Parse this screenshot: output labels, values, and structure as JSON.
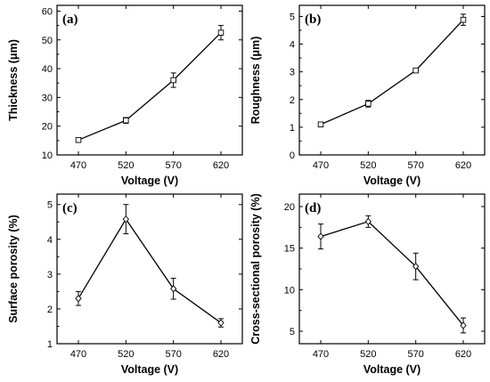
{
  "chart_data": [
    {
      "type": "line",
      "panel_label": "(a)",
      "xlabel": "Voltage (V)",
      "ylabel": "Thickness (μm)",
      "categories": [
        "470",
        "520",
        "570",
        "620"
      ],
      "x": [
        470,
        520,
        570,
        620
      ],
      "values": [
        15.2,
        22.0,
        36.0,
        52.5
      ],
      "errors": [
        0.8,
        1.0,
        2.5,
        2.5
      ],
      "ylim": [
        10,
        62
      ],
      "yticks": [
        10,
        20,
        30,
        40,
        50,
        60
      ],
      "grid": false,
      "marker": "open-square"
    },
    {
      "type": "line",
      "panel_label": "(b)",
      "xlabel": "Voltage (V)",
      "ylabel": "Roughness (μm)",
      "categories": [
        "470",
        "520",
        "570",
        "620"
      ],
      "x": [
        470,
        520,
        570,
        620
      ],
      "values": [
        1.1,
        1.85,
        3.05,
        4.88
      ],
      "errors": [
        0.07,
        0.12,
        0.07,
        0.2
      ],
      "ylim": [
        0,
        5.4
      ],
      "yticks": [
        0,
        1,
        2,
        3,
        4,
        5
      ],
      "grid": false,
      "marker": "open-square"
    },
    {
      "type": "line",
      "panel_label": "(c)",
      "xlabel": "Voltage (V)",
      "ylabel": "Surface porosity (%)",
      "categories": [
        "470",
        "520",
        "570",
        "620"
      ],
      "x": [
        470,
        520,
        570,
        620
      ],
      "values": [
        2.3,
        4.58,
        2.58,
        1.6
      ],
      "errors": [
        0.2,
        0.42,
        0.3,
        0.12
      ],
      "ylim": [
        1,
        5.3
      ],
      "yticks": [
        1,
        2,
        3,
        4,
        5
      ],
      "grid": false,
      "marker": "open-diamond"
    },
    {
      "type": "line",
      "panel_label": "(d)",
      "xlabel": "Voltage (V)",
      "ylabel": "Cross-sectional porosity (%)",
      "categories": [
        "470",
        "520",
        "570",
        "620"
      ],
      "x": [
        470,
        520,
        570,
        620
      ],
      "values": [
        16.4,
        18.2,
        12.8,
        5.7
      ],
      "errors": [
        1.5,
        0.7,
        1.6,
        0.9
      ],
      "ylim": [
        3.5,
        21.5
      ],
      "yticks": [
        5,
        10,
        15,
        20
      ],
      "grid": false,
      "marker": "open-diamond"
    }
  ]
}
